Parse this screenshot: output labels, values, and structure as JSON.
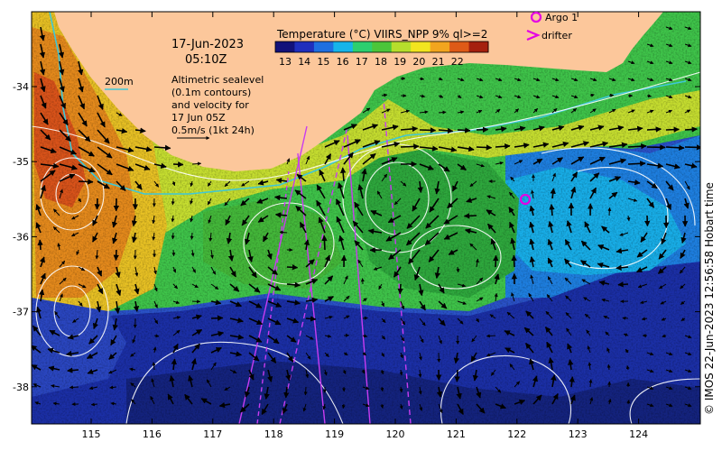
{
  "title": {
    "date": "17-Jun-2023",
    "time": "05:10Z"
  },
  "colorbar": {
    "title": "Temperature (°C) VIIRS_NPP 9% ql>=2",
    "ticks": [
      "13",
      "14",
      "15",
      "16",
      "17",
      "18",
      "19",
      "20",
      "21",
      "22"
    ],
    "colors": [
      "#12127a",
      "#1f2fbd",
      "#1e6fe0",
      "#16b4ea",
      "#2dcf6f",
      "#4cc53a",
      "#b6de2c",
      "#f2e51f",
      "#f2a51e",
      "#de5a17",
      "#a5200e"
    ]
  },
  "legend": {
    "argo": "Argo 1",
    "drifter": "drifter",
    "argo_color": "#e400e4",
    "drifter_color": "#e400e4"
  },
  "contour_legend": {
    "label": "200m",
    "color": "#3ec8d8"
  },
  "annotation": {
    "lines": [
      "Altimetric sealevel",
      "(0.1m contours)",
      "and velocity for",
      "17 Jun 05Z",
      "0.5m/s (1kt 24h)"
    ]
  },
  "axes": {
    "lon_labels": [
      "115",
      "116",
      "117",
      "118",
      "119",
      "120",
      "121",
      "122",
      "123",
      "124"
    ],
    "lat_labels": [
      "-34",
      "-35",
      "-36",
      "-37",
      "-38"
    ]
  },
  "land_color": "#fcc79b",
  "credit": "© IMOS 22-Jun-2023 12:56:58 Hobart time"
}
